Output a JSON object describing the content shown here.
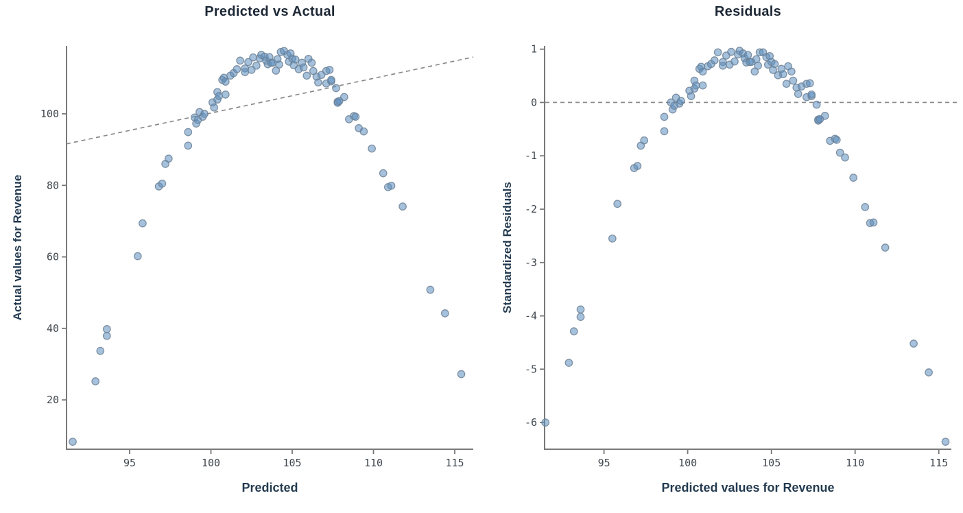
{
  "style": {
    "background": "#ffffff",
    "axis_color": "#787878",
    "tick_label_color": "#3f474e",
    "title_color": "#1c2735",
    "axis_label_color": "#243b50",
    "marker_fill": "#5b8ebf",
    "marker_stroke": "#6e8397",
    "reference_line_color": "#8a8a8a"
  },
  "chart_data": [
    {
      "type": "scatter",
      "title": "Predicted vs Actual",
      "xlabel": "Predicted",
      "ylabel": "Actual values for Revenue",
      "xlim": [
        91.12,
        116.14
      ],
      "ylim": [
        6.2,
        119.0
      ],
      "xticks": [
        95,
        100,
        105,
        110,
        115
      ],
      "yticks": [
        20,
        40,
        60,
        80,
        100
      ],
      "grid": false,
      "legend": "none",
      "reference_line": {
        "type": "segment",
        "style": "dashed",
        "x1": 91.12,
        "y1": 91.6,
        "x2": 116.14,
        "y2": 115.9
      },
      "points": [
        [
          91.5,
          8.3
        ],
        [
          92.9,
          25.2
        ],
        [
          93.2,
          33.7
        ],
        [
          93.6,
          37.9
        ],
        [
          93.6,
          39.8
        ],
        [
          95.5,
          60.2
        ],
        [
          95.8,
          69.4
        ],
        [
          96.8,
          79.7
        ],
        [
          97.0,
          80.5
        ],
        [
          97.2,
          86.0
        ],
        [
          97.4,
          87.5
        ],
        [
          98.6,
          91.1
        ],
        [
          98.6,
          94.9
        ],
        [
          99.0,
          99.0
        ],
        [
          99.1,
          97.3
        ],
        [
          99.2,
          98.3
        ],
        [
          99.3,
          100.5
        ],
        [
          99.5,
          99.2
        ],
        [
          99.6,
          100.0
        ],
        [
          100.1,
          103.2
        ],
        [
          100.2,
          101.8
        ],
        [
          100.4,
          104.0
        ],
        [
          100.4,
          106.1
        ],
        [
          100.5,
          105.0
        ],
        [
          100.7,
          109.5
        ],
        [
          100.8,
          110.1
        ],
        [
          100.9,
          109.0
        ],
        [
          100.9,
          105.4
        ],
        [
          101.2,
          110.7
        ],
        [
          101.4,
          111.4
        ],
        [
          101.6,
          112.5
        ],
        [
          101.8,
          114.9
        ],
        [
          102.1,
          112.7
        ],
        [
          102.1,
          111.7
        ],
        [
          102.3,
          114.5
        ],
        [
          102.5,
          112.3
        ],
        [
          102.6,
          115.8
        ],
        [
          102.8,
          113.5
        ],
        [
          103.0,
          115.5
        ],
        [
          103.1,
          116.5
        ],
        [
          103.3,
          116.0
        ],
        [
          103.4,
          114.9
        ],
        [
          103.5,
          113.9
        ],
        [
          103.6,
          115.9
        ],
        [
          103.7,
          114.3
        ],
        [
          103.8,
          114.3
        ],
        [
          104.0,
          112.1
        ],
        [
          104.1,
          115.3
        ],
        [
          104.2,
          113.8
        ],
        [
          104.3,
          117.3
        ],
        [
          104.5,
          117.6
        ],
        [
          104.7,
          116.5
        ],
        [
          104.8,
          114.6
        ],
        [
          104.9,
          116.9
        ],
        [
          105.0,
          115.5
        ],
        [
          105.1,
          113.6
        ],
        [
          105.2,
          115.2
        ],
        [
          105.4,
          112.5
        ],
        [
          105.6,
          114.3
        ],
        [
          105.7,
          113.0
        ],
        [
          105.9,
          110.7
        ],
        [
          106.0,
          115.4
        ],
        [
          106.2,
          114.3
        ],
        [
          106.3,
          112.0
        ],
        [
          106.5,
          110.4
        ],
        [
          106.6,
          108.8
        ],
        [
          106.8,
          110.9
        ],
        [
          107.1,
          112.0
        ],
        [
          107.1,
          108.5
        ],
        [
          107.3,
          112.3
        ],
        [
          107.4,
          109.1
        ],
        [
          107.4,
          109.5
        ],
        [
          107.7,
          107.2
        ],
        [
          107.8,
          103.4
        ],
        [
          107.8,
          103.1
        ],
        [
          107.9,
          103.6
        ],
        [
          108.2,
          104.7
        ],
        [
          108.5,
          98.5
        ],
        [
          108.8,
          99.4
        ],
        [
          108.9,
          99.2
        ],
        [
          109.1,
          96.0
        ],
        [
          109.4,
          95.1
        ],
        [
          109.9,
          90.3
        ],
        [
          110.6,
          83.4
        ],
        [
          110.9,
          79.5
        ],
        [
          111.1,
          79.9
        ],
        [
          111.8,
          74.1
        ],
        [
          113.5,
          50.8
        ],
        [
          114.4,
          44.2
        ],
        [
          115.4,
          27.2
        ]
      ]
    },
    {
      "type": "scatter",
      "title": "Residuals",
      "xlabel": "Predicted values for Revenue",
      "ylabel": "Standardized Residuals",
      "xlim": [
        91.45,
        115.75
      ],
      "ylim": [
        -6.5,
        1.06
      ],
      "xticks": [
        95,
        100,
        105,
        110,
        115
      ],
      "yticks": [
        1,
        0,
        -1,
        -2,
        -3,
        -4,
        -5,
        -6
      ],
      "grid": false,
      "legend": "none",
      "reference_line": {
        "type": "horizontal",
        "style": "dashed",
        "y": 0
      },
      "points": [
        [
          91.5,
          -6.0
        ],
        [
          92.9,
          -4.88
        ],
        [
          93.2,
          -4.29
        ],
        [
          93.6,
          -4.02
        ],
        [
          93.6,
          -3.88
        ],
        [
          95.5,
          -2.55
        ],
        [
          95.8,
          -1.9
        ],
        [
          96.8,
          -1.23
        ],
        [
          97.0,
          -1.19
        ],
        [
          97.2,
          -0.81
        ],
        [
          97.4,
          -0.71
        ],
        [
          98.6,
          -0.54
        ],
        [
          98.6,
          -0.27
        ],
        [
          99.0,
          0.0
        ],
        [
          99.1,
          -0.13
        ],
        [
          99.2,
          -0.06
        ],
        [
          99.3,
          0.09
        ],
        [
          99.5,
          -0.02
        ],
        [
          99.6,
          0.03
        ],
        [
          100.1,
          0.22
        ],
        [
          100.2,
          0.12
        ],
        [
          100.4,
          0.26
        ],
        [
          100.4,
          0.41
        ],
        [
          100.5,
          0.32
        ],
        [
          100.7,
          0.63
        ],
        [
          100.8,
          0.67
        ],
        [
          100.9,
          0.58
        ],
        [
          100.9,
          0.32
        ],
        [
          101.2,
          0.68
        ],
        [
          101.4,
          0.72
        ],
        [
          101.6,
          0.79
        ],
        [
          101.8,
          0.94
        ],
        [
          102.1,
          0.76
        ],
        [
          102.1,
          0.69
        ],
        [
          102.3,
          0.88
        ],
        [
          102.5,
          0.71
        ],
        [
          102.6,
          0.95
        ],
        [
          102.8,
          0.77
        ],
        [
          103.0,
          0.9
        ],
        [
          103.1,
          0.97
        ],
        [
          103.3,
          0.92
        ],
        [
          103.4,
          0.83
        ],
        [
          103.5,
          0.75
        ],
        [
          103.6,
          0.89
        ],
        [
          103.7,
          0.76
        ],
        [
          103.8,
          0.76
        ],
        [
          104.0,
          0.58
        ],
        [
          104.1,
          0.81
        ],
        [
          104.2,
          0.69
        ],
        [
          104.3,
          0.94
        ],
        [
          104.5,
          0.94
        ],
        [
          104.7,
          0.85
        ],
        [
          104.8,
          0.71
        ],
        [
          104.9,
          0.87
        ],
        [
          105.0,
          0.76
        ],
        [
          105.1,
          0.61
        ],
        [
          105.2,
          0.72
        ],
        [
          105.4,
          0.51
        ],
        [
          105.6,
          0.63
        ],
        [
          105.7,
          0.53
        ],
        [
          105.9,
          0.35
        ],
        [
          106.0,
          0.68
        ],
        [
          106.2,
          0.58
        ],
        [
          106.3,
          0.41
        ],
        [
          106.5,
          0.28
        ],
        [
          106.6,
          0.16
        ],
        [
          106.8,
          0.3
        ],
        [
          107.1,
          0.35
        ],
        [
          107.1,
          0.1
        ],
        [
          107.3,
          0.36
        ],
        [
          107.4,
          0.12
        ],
        [
          107.4,
          0.15
        ],
        [
          107.7,
          -0.04
        ],
        [
          107.8,
          -0.32
        ],
        [
          107.8,
          -0.34
        ],
        [
          107.9,
          -0.31
        ],
        [
          108.2,
          -0.25
        ],
        [
          108.5,
          -0.72
        ],
        [
          108.8,
          -0.68
        ],
        [
          108.9,
          -0.7
        ],
        [
          109.1,
          -0.94
        ],
        [
          109.4,
          -1.03
        ],
        [
          109.9,
          -1.41
        ],
        [
          110.6,
          -1.96
        ],
        [
          110.9,
          -2.26
        ],
        [
          111.1,
          -2.25
        ],
        [
          111.8,
          -2.72
        ],
        [
          113.5,
          -4.52
        ],
        [
          114.4,
          -5.06
        ],
        [
          115.4,
          -6.36
        ]
      ]
    }
  ]
}
